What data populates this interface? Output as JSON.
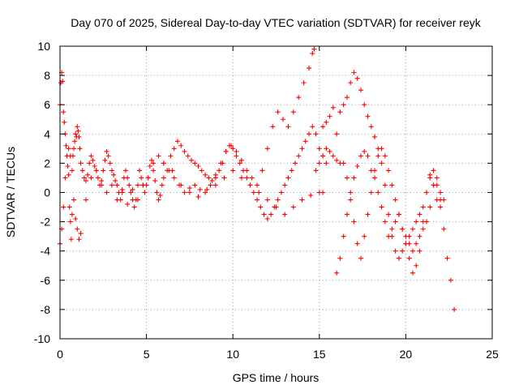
{
  "chart_data": {
    "type": "scatter",
    "title": "Day 070 of 2025, Sidereal Day-to-day VTEC variation (SDTVAR) for receiver reyk",
    "xlabel": "GPS time / hours",
    "ylabel": "SDTVAR / TECUs",
    "xlim": [
      0,
      25
    ],
    "ylim": [
      -10,
      10
    ],
    "x_ticks": [
      0,
      5,
      10,
      15,
      20,
      25
    ],
    "y_ticks": [
      -10,
      -8,
      -6,
      -4,
      -2,
      0,
      2,
      4,
      6,
      8,
      10
    ],
    "grid": true,
    "marker": "plus",
    "color": "#ff0000",
    "series": [
      {
        "x": [
          0.0,
          0.05,
          0.1,
          0.15,
          0.2,
          0.25,
          0.3,
          0.35,
          0.4,
          0.45,
          0.5,
          0.55,
          0.6,
          0.65,
          0.7,
          0.75,
          0.8,
          0.85,
          0.9,
          0.95,
          1.0,
          1.05,
          1.1,
          1.15,
          1.2,
          1.3,
          1.4,
          1.5,
          1.6,
          1.7,
          1.8,
          1.9,
          2.0,
          2.1,
          2.2,
          2.3,
          2.4,
          2.5,
          2.6,
          2.7,
          2.8,
          2.9,
          3.0,
          3.1,
          3.2,
          3.3,
          3.4,
          3.5,
          3.6,
          3.7,
          3.8,
          3.9,
          4.0,
          4.1,
          4.2,
          4.3,
          4.4,
          4.5,
          4.6,
          4.7,
          4.8,
          4.9,
          5.0,
          5.1,
          5.2,
          5.3,
          5.4,
          5.5,
          5.6,
          5.7,
          5.8,
          5.9,
          6.0,
          6.2,
          6.4,
          6.6,
          6.8,
          7.0,
          7.2,
          7.4,
          7.6,
          7.8,
          8.0,
          8.2,
          8.4,
          8.6,
          8.8,
          9.0,
          9.2,
          9.4,
          9.6,
          9.8,
          10.0,
          10.2,
          10.4,
          10.6,
          10.8,
          11.0,
          11.2,
          11.4,
          11.6,
          11.8,
          12.0,
          12.2,
          12.4,
          12.6,
          12.8,
          13.0,
          13.2,
          13.4,
          13.6,
          13.8,
          14.0,
          14.2,
          14.4,
          14.6,
          14.8,
          15.0,
          15.2,
          15.4
        ],
        "y": [
          6.0,
          7.5,
          8.2,
          7.6,
          5.5,
          4.8,
          4.0,
          3.2,
          2.5,
          1.8,
          1.2,
          -1.0,
          -2.0,
          -3.2,
          -1.5,
          2.5,
          3.0,
          3.5,
          4.0,
          3.8,
          4.5,
          4.2,
          3.8,
          3.0,
          2.0,
          1.5,
          1.0,
          0.8,
          1.2,
          2.0,
          2.5,
          2.2,
          1.8,
          1.5,
          1.0,
          0.5,
          0.8,
          1.5,
          2.2,
          2.8,
          2.5,
          2.0,
          1.5,
          1.2,
          0.8,
          0.5,
          0.0,
          -0.5,
          0.2,
          1.0,
          1.5,
          1.0,
          0.5,
          0.0,
          -0.5,
          -1.0,
          -0.5,
          0.5,
          1.5,
          1.0,
          0.5,
          0.0,
          0.5,
          1.0,
          1.8,
          2.2,
          1.5,
          0.8,
          0.0,
          -0.5,
          -0.2,
          0.5,
          1.0,
          1.5,
          2.5,
          3.0,
          3.5,
          3.2,
          2.8,
          2.5,
          2.2,
          2.0,
          1.8,
          1.5,
          1.2,
          1.0,
          0.8,
          1.0,
          1.5,
          2.0,
          2.8,
          3.2,
          3.0,
          2.5,
          2.0,
          1.5,
          1.0,
          0.5,
          0.0,
          -0.5,
          -1.0,
          -1.5,
          -1.8,
          -1.5,
          -1.0,
          -0.5,
          0.0,
          0.5,
          1.0,
          1.5,
          2.0,
          2.5,
          3.0,
          3.5,
          4.0,
          4.5,
          4.0,
          3.0,
          2.5,
          2.0
        ]
      },
      {
        "x": [
          0.0,
          0.1,
          0.2,
          0.3,
          0.4,
          0.5,
          0.6,
          0.7,
          0.8,
          0.9,
          1.0,
          1.1,
          1.2,
          1.5,
          1.8,
          2.1,
          2.4,
          2.7,
          3.0,
          3.3,
          3.6,
          3.9,
          4.2,
          4.5,
          4.8,
          5.1,
          5.4,
          5.7,
          6.0,
          6.3,
          6.6,
          6.9,
          7.2,
          7.5,
          7.8,
          8.1,
          8.4,
          8.7,
          9.0,
          9.3,
          9.6,
          9.9,
          10.2,
          10.5,
          10.8,
          11.1,
          11.4,
          11.7,
          12.0,
          12.3,
          12.6,
          12.9,
          13.2,
          13.5,
          13.8,
          14.1,
          14.4,
          14.6,
          14.7
        ],
        "y": [
          -3.5,
          -2.5,
          -1.0,
          1.0,
          2.5,
          3.0,
          2.5,
          1.5,
          -0.5,
          -1.8,
          -2.5,
          -3.2,
          -2.8,
          -0.5,
          1.0,
          1.5,
          0.5,
          0.0,
          0.5,
          -0.5,
          0.0,
          -0.8,
          0.2,
          -0.5,
          0.5,
          1.0,
          2.0,
          2.5,
          2.0,
          1.5,
          1.0,
          0.5,
          0.0,
          0.3,
          0.5,
          0.2,
          0.0,
          0.5,
          1.2,
          2.0,
          2.8,
          3.2,
          2.8,
          2.2,
          1.5,
          1.0,
          0.5,
          1.5,
          3.0,
          4.5,
          5.5,
          5.0,
          4.5,
          5.5,
          6.5,
          7.5,
          8.5,
          9.5,
          9.8
        ]
      },
      {
        "x": [
          6.0,
          6.5,
          7.0,
          7.5,
          8.0,
          8.5,
          9.0,
          9.5,
          10.0,
          10.5,
          11.0,
          11.5,
          12.0,
          12.5,
          13.0,
          13.5,
          14.0,
          14.5,
          15.0,
          15.2
        ],
        "y": [
          2.0,
          1.5,
          0.5,
          0.0,
          -0.3,
          0.2,
          0.5,
          1.0,
          1.5,
          1.0,
          0.5,
          0.0,
          -0.5,
          -1.0,
          -1.5,
          -1.0,
          -0.5,
          -0.2,
          0.0,
          0.0
        ]
      },
      {
        "x": [
          15.2,
          15.4,
          15.6,
          15.8,
          16.0,
          16.2,
          16.4,
          16.6,
          16.8,
          17.0,
          17.2,
          17.4,
          17.6,
          17.8,
          18.0,
          18.2,
          18.4,
          18.6,
          18.8,
          19.0,
          19.2,
          19.4,
          19.6,
          19.8,
          20.0,
          20.2,
          20.4,
          20.6,
          20.8,
          21.0,
          21.2,
          21.4,
          21.6,
          21.8,
          22.0,
          22.2,
          22.4,
          22.6,
          22.8
        ],
        "y": [
          4.5,
          4.8,
          5.2,
          5.8,
          4.0,
          5.5,
          6.0,
          6.5,
          7.5,
          8.2,
          7.8,
          7.0,
          6.0,
          5.2,
          4.5,
          3.8,
          3.0,
          2.0,
          0.5,
          -1.5,
          -3.0,
          -4.0,
          -4.5,
          -4.0,
          -3.5,
          -3.0,
          -2.5,
          -2.0,
          -1.5,
          -1.0,
          0.0,
          1.0,
          1.5,
          0.5,
          -0.5,
          -2.5,
          -4.5,
          -6.0,
          -8.0
        ]
      },
      {
        "x": [
          16.0,
          16.2,
          16.4,
          16.6,
          16.8,
          17.0,
          17.2,
          17.4,
          17.6,
          17.8,
          18.0,
          18.2,
          18.4,
          18.6,
          18.8,
          19.0,
          19.2,
          19.4,
          19.6,
          19.8,
          20.0,
          20.2,
          20.4,
          20.6,
          20.8,
          21.0,
          21.2,
          21.4,
          21.6,
          21.8,
          22.0,
          22.2
        ],
        "y": [
          -5.5,
          -4.5,
          -3.0,
          -1.5,
          0.0,
          1.0,
          1.8,
          2.5,
          2.8,
          2.5,
          1.5,
          1.0,
          0.0,
          -1.0,
          -2.0,
          -3.0,
          -2.5,
          -2.0,
          -1.5,
          -2.5,
          -3.5,
          -4.5,
          -5.5,
          -5.0,
          -4.0,
          -2.0,
          0.0,
          1.2,
          0.5,
          -0.5,
          -1.0,
          -0.5
        ]
      },
      {
        "x": [
          14.8,
          15.0,
          15.2,
          15.4,
          15.6,
          15.8,
          16.0,
          16.2,
          16.4,
          16.6,
          16.8,
          17.0,
          17.2,
          17.4,
          17.6,
          17.8,
          18.0,
          18.2,
          18.4,
          18.6,
          18.8,
          19.0,
          19.2,
          19.4,
          19.6,
          19.8,
          20.0,
          20.2,
          20.4,
          20.6,
          20.8,
          21.0,
          21.2,
          21.4,
          21.6,
          21.8,
          22.0
        ],
        "y": [
          1.5,
          2.0,
          2.5,
          3.0,
          2.8,
          2.5,
          2.2,
          2.0,
          2.0,
          1.0,
          -0.5,
          -2.0,
          -3.5,
          -4.5,
          -3.0,
          -1.5,
          0.0,
          1.5,
          2.5,
          3.0,
          2.5,
          1.5,
          0.5,
          -0.5,
          -1.5,
          -2.5,
          -3.0,
          -3.5,
          -4.0,
          -3.5,
          -3.0,
          -2.5,
          -2.0,
          -1.0,
          0.5,
          1.0,
          0.0
        ]
      }
    ]
  }
}
